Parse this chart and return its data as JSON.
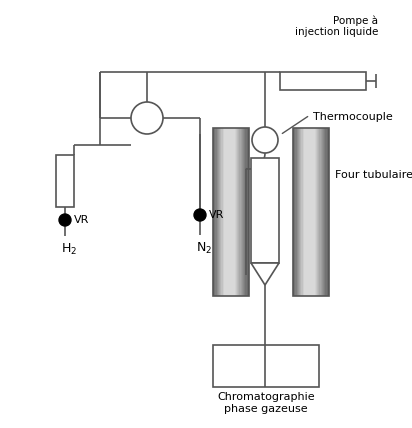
{
  "background_color": "#ffffff",
  "line_color": "#555555",
  "labels": {
    "pompe": "Pompe à\ninjection liquide",
    "thermocouple": "Thermocouple",
    "four": "Four tubulaire",
    "h2": "H$_2$",
    "n2": "N$_2$",
    "vr": "VR",
    "chroma": "Chromatographie\nphase gazeuse"
  },
  "figsize": [
    4.12,
    4.28
  ],
  "dpi": 100
}
